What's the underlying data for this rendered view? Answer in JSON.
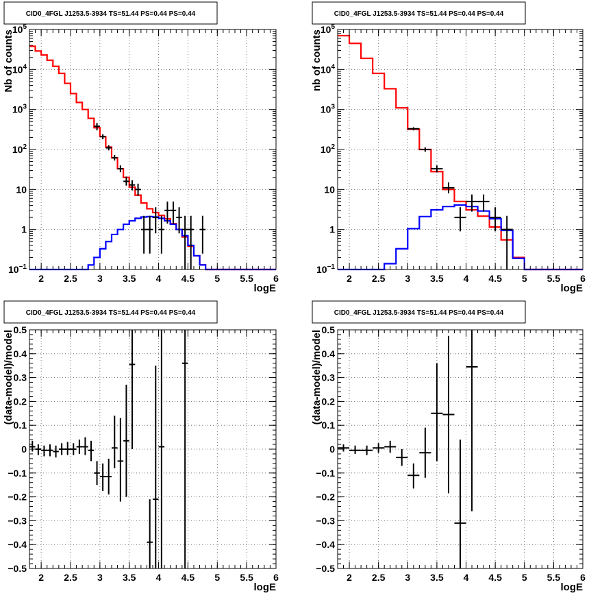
{
  "chart_data": [
    {
      "type": "line",
      "panel": "top-left",
      "title": "CID0_4FGL J1253.5-3934 TS=51.44 PS=0.44 PS=0.44",
      "xlabel": "logE",
      "ylabel": "Nb of counts",
      "xlim": [
        1.8,
        6.0
      ],
      "ylim": [
        0.1,
        100000
      ],
      "yscale": "log",
      "xticks": [
        2,
        2.5,
        3,
        3.5,
        4,
        4.5,
        5,
        5.5,
        6
      ],
      "xtick_labels": [
        "2",
        "2.5",
        "3",
        "3.5",
        "4",
        "4.5",
        "5",
        "5.5",
        "6"
      ],
      "yticks": [
        0.1,
        1,
        10,
        100,
        1000,
        10000,
        100000
      ],
      "ytick_labels": [
        "10^-1",
        "1",
        "10",
        "10^2",
        "10^3",
        "10^4",
        "10^5"
      ],
      "grid": true,
      "bin_edges": [
        1.8,
        1.9,
        2.0,
        2.1,
        2.2,
        2.3,
        2.4,
        2.5,
        2.6,
        2.7,
        2.8,
        2.9,
        3.0,
        3.1,
        3.2,
        3.3,
        3.4,
        3.5,
        3.6,
        3.7,
        3.8,
        3.9,
        4.0,
        4.1,
        4.2,
        4.3,
        4.4,
        4.5,
        4.6,
        4.7,
        4.8,
        4.9,
        5.0,
        5.1,
        5.2,
        5.3,
        5.4,
        5.5,
        5.6,
        5.7,
        5.8,
        5.9,
        6.0
      ],
      "series": [
        {
          "name": "",
          "color": "#ff0000",
          "style": "hist",
          "values": [
            38000,
            29000,
            23000,
            17000,
            12000,
            8000,
            4500,
            2500,
            1500,
            1000,
            600,
            350,
            210,
            115,
            62,
            33,
            20,
            11.5,
            7.2,
            4.6,
            3.3,
            2.65,
            2.25,
            1.85,
            1.4,
            1.0,
            0.65,
            0.38,
            0.22,
            0.13,
            0.1,
            0.1,
            0.1,
            0.1,
            0.1,
            0.1,
            0.1,
            0.1,
            0.1,
            0.1,
            0.1,
            0.1
          ]
        },
        {
          "name": "",
          "color": "#0000ff",
          "style": "hist",
          "values": [
            0.1,
            0.1,
            0.1,
            0.1,
            0.1,
            0.1,
            0.1,
            0.1,
            0.1,
            0.1,
            0.13,
            0.2,
            0.33,
            0.5,
            0.75,
            1.0,
            1.35,
            1.65,
            1.9,
            2.05,
            2.1,
            2.05,
            1.9,
            1.65,
            1.35,
            1.0,
            0.7,
            0.4,
            0.22,
            0.13,
            0.1,
            0.1,
            0.1,
            0.1,
            0.1,
            0.1,
            0.1,
            0.1,
            0.1,
            0.1,
            0.1,
            0.1
          ]
        }
      ],
      "points": [
        {
          "x": 2.95,
          "y": 380,
          "lo": 300,
          "hi": 460
        },
        {
          "x": 3.05,
          "y": 210,
          "lo": 180,
          "hi": 240
        },
        {
          "x": 3.15,
          "y": 110,
          "lo": 95,
          "hi": 128
        },
        {
          "x": 3.25,
          "y": 62,
          "lo": 53,
          "hi": 73
        },
        {
          "x": 3.35,
          "y": 33,
          "lo": 27,
          "hi": 40
        },
        {
          "x": 3.45,
          "y": 16,
          "lo": 12.5,
          "hi": 21
        },
        {
          "x": 3.55,
          "y": 13,
          "lo": 9.5,
          "hi": 17
        },
        {
          "x": 3.65,
          "y": 10,
          "lo": 7,
          "hi": 14
        },
        {
          "x": 3.75,
          "y": 1,
          "lo": 0.25,
          "hi": 2.2
        },
        {
          "x": 3.85,
          "y": 1,
          "lo": 0.25,
          "hi": 2.2
        },
        {
          "x": 3.95,
          "y": 2,
          "lo": 0.8,
          "hi": 3.6
        },
        {
          "x": 4.05,
          "y": 1,
          "lo": 0.25,
          "hi": 2.2
        },
        {
          "x": 4.15,
          "y": 3,
          "lo": 1.4,
          "hi": 5
        },
        {
          "x": 4.25,
          "y": 3,
          "lo": 1.4,
          "hi": 5
        },
        {
          "x": 4.35,
          "y": 2,
          "lo": 0.8,
          "hi": 3.6
        },
        {
          "x": 4.45,
          "y": 1,
          "lo": 0.1,
          "hi": 2.2
        },
        {
          "x": 4.55,
          "y": 1,
          "lo": 0.1,
          "hi": 2.2
        },
        {
          "x": 4.75,
          "y": 1,
          "lo": 0.25,
          "hi": 2.2
        }
      ]
    },
    {
      "type": "line",
      "panel": "top-right",
      "title": "CID0_4FGL J1253.5-3934 TS=51.44 PS=0.44 PS=0.44",
      "xlabel": "logE",
      "ylabel": "nb of counts",
      "xlim": [
        1.8,
        6.0
      ],
      "ylim": [
        0.1,
        100000
      ],
      "yscale": "log",
      "xticks": [
        2,
        2.5,
        3,
        3.5,
        4,
        4.5,
        5,
        5.5,
        6
      ],
      "xtick_labels": [
        "2",
        "2.5",
        "3",
        "3.5",
        "4",
        "4.5",
        "5",
        "5.5",
        "6"
      ],
      "yticks": [
        0.1,
        1,
        10,
        100,
        1000,
        10000,
        100000
      ],
      "ytick_labels": [
        "10^-1",
        "1",
        "10",
        "10^2",
        "10^3",
        "10^4",
        "10^5"
      ],
      "grid": true,
      "bin_edges": [
        1.8,
        2.0,
        2.2,
        2.4,
        2.6,
        2.8,
        3.0,
        3.2,
        3.4,
        3.6,
        3.8,
        4.0,
        4.2,
        4.4,
        4.6,
        4.8,
        5.0,
        5.2,
        5.4,
        5.6,
        5.8,
        6.0
      ],
      "series": [
        {
          "name": "",
          "color": "#ff0000",
          "style": "hist",
          "values": [
            70000,
            45000,
            19000,
            8000,
            3300,
            1100,
            320,
            100,
            28,
            10,
            5,
            3.1,
            2.15,
            1.15,
            0.55,
            0.2,
            0.1,
            0.1,
            0.1,
            0.1,
            0.1
          ]
        },
        {
          "name": "",
          "color": "#0000ff",
          "style": "hist",
          "values": [
            0.1,
            0.1,
            0.1,
            0.1,
            0.14,
            0.33,
            1.05,
            2.1,
            3.1,
            3.75,
            4.1,
            3.75,
            2.9,
            1.85,
            0.95,
            0.19,
            0.1,
            0.1,
            0.1,
            0.1,
            0.1
          ]
        }
      ],
      "points": [
        {
          "x": 3.1,
          "y": 330,
          "lo": 300,
          "hi": 360
        },
        {
          "x": 3.3,
          "y": 100,
          "lo": 88,
          "hi": 113
        },
        {
          "x": 3.5,
          "y": 33,
          "lo": 27,
          "hi": 40
        },
        {
          "x": 3.7,
          "y": 11,
          "lo": 8,
          "hi": 15
        },
        {
          "x": 3.9,
          "y": 2,
          "lo": 0.9,
          "hi": 3.6
        },
        {
          "x": 4.1,
          "y": 5,
          "lo": 2.8,
          "hi": 7.5
        },
        {
          "x": 4.3,
          "y": 5,
          "lo": 2.8,
          "hi": 7.5
        },
        {
          "x": 4.5,
          "y": 2,
          "lo": 0.9,
          "hi": 3.6
        },
        {
          "x": 4.7,
          "y": 1,
          "lo": 0.1,
          "hi": 2.2
        }
      ]
    },
    {
      "type": "scatter",
      "panel": "bottom-left",
      "title": "CID0_4FGL J1253.5-3934 TS=51.44 PS=0.44 PS=0.44",
      "xlabel": "logE",
      "ylabel": "(data-model)/model",
      "xlim": [
        1.8,
        6.0
      ],
      "ylim": [
        -0.5,
        0.5
      ],
      "xticks": [
        2,
        2.5,
        3,
        3.5,
        4,
        4.5,
        5,
        5.5,
        6
      ],
      "xtick_labels": [
        "2",
        "2.5",
        "3",
        "3.5",
        "4",
        "4.5",
        "5",
        "5.5",
        "6"
      ],
      "yticks": [
        -0.5,
        -0.4,
        -0.3,
        -0.2,
        -0.1,
        0,
        0.1,
        0.2,
        0.3,
        0.4,
        0.5
      ],
      "ytick_labels": [
        "−0.5",
        "−0.4",
        "−0.3",
        "−0.2",
        "−0.1",
        "0",
        "0.1",
        "0.2",
        "0.3",
        "0.4",
        "0.5"
      ],
      "grid": true,
      "halfwidth": 0.05,
      "points": [
        {
          "x": 1.85,
          "y": 0.01,
          "lo": -0.01,
          "hi": 0.035
        },
        {
          "x": 1.95,
          "y": 0.0,
          "lo": -0.025,
          "hi": 0.02
        },
        {
          "x": 2.05,
          "y": -0.005,
          "lo": -0.03,
          "hi": 0.015
        },
        {
          "x": 2.15,
          "y": -0.005,
          "lo": -0.03,
          "hi": 0.02
        },
        {
          "x": 2.25,
          "y": -0.01,
          "lo": -0.035,
          "hi": 0.015
        },
        {
          "x": 2.35,
          "y": 0.0,
          "lo": -0.025,
          "hi": 0.025
        },
        {
          "x": 2.45,
          "y": 0.0,
          "lo": -0.025,
          "hi": 0.03
        },
        {
          "x": 2.55,
          "y": 0.0,
          "lo": -0.025,
          "hi": 0.025
        },
        {
          "x": 2.65,
          "y": 0.01,
          "lo": -0.02,
          "hi": 0.04
        },
        {
          "x": 2.75,
          "y": 0.01,
          "lo": -0.025,
          "hi": 0.05
        },
        {
          "x": 2.85,
          "y": -0.005,
          "lo": -0.05,
          "hi": 0.035
        },
        {
          "x": 2.95,
          "y": -0.1,
          "lo": -0.15,
          "hi": -0.05
        },
        {
          "x": 3.05,
          "y": -0.115,
          "lo": -0.175,
          "hi": -0.06
        },
        {
          "x": 3.15,
          "y": -0.115,
          "lo": -0.19,
          "hi": -0.04
        },
        {
          "x": 3.25,
          "y": 0.005,
          "lo": -0.08,
          "hi": 0.14
        },
        {
          "x": 3.35,
          "y": -0.05,
          "lo": -0.22,
          "hi": 0.13
        },
        {
          "x": 3.45,
          "y": 0.035,
          "lo": -0.2,
          "hi": 0.27
        },
        {
          "x": 3.55,
          "y": 0.355,
          "lo": 0.0,
          "hi": 0.5
        },
        {
          "x": 3.85,
          "y": -0.39,
          "lo": -0.5,
          "hi": -0.21
        },
        {
          "x": 3.95,
          "y": -0.21,
          "lo": -0.5,
          "hi": 0.35
        },
        {
          "x": 4.05,
          "y": 0.01,
          "lo": -0.5,
          "hi": 0.5
        },
        {
          "x": 4.45,
          "y": 0.36,
          "lo": -0.5,
          "hi": 0.5
        }
      ]
    },
    {
      "type": "scatter",
      "panel": "bottom-right",
      "title": "CID0_4FGL J1253.5-3934 TS=51.44 PS=0.44 PS=0.44",
      "xlabel": "logE",
      "ylabel": "(data-model)/model",
      "xlim": [
        1.8,
        6.0
      ],
      "ylim": [
        -0.5,
        0.5
      ],
      "xticks": [
        2,
        2.5,
        3,
        3.5,
        4,
        4.5,
        5,
        5.5,
        6
      ],
      "xtick_labels": [
        "2",
        "2.5",
        "3",
        "3.5",
        "4",
        "4.5",
        "5",
        "5.5",
        "6"
      ],
      "yticks": [
        -0.5,
        -0.4,
        -0.3,
        -0.2,
        -0.1,
        0,
        0.1,
        0.2,
        0.3,
        0.4,
        0.5
      ],
      "ytick_labels": [
        "−0.5",
        "−0.4",
        "−0.3",
        "−0.2",
        "−0.1",
        "0",
        "0.1",
        "0.2",
        "0.3",
        "0.4",
        "0.5"
      ],
      "grid": true,
      "halfwidth": 0.1,
      "points": [
        {
          "x": 1.9,
          "y": 0.005,
          "lo": -0.01,
          "hi": 0.02
        },
        {
          "x": 2.1,
          "y": -0.005,
          "lo": -0.02,
          "hi": 0.015
        },
        {
          "x": 2.3,
          "y": -0.005,
          "lo": -0.025,
          "hi": 0.015
        },
        {
          "x": 2.5,
          "y": 0.005,
          "lo": -0.015,
          "hi": 0.025
        },
        {
          "x": 2.7,
          "y": 0.01,
          "lo": -0.015,
          "hi": 0.035
        },
        {
          "x": 2.9,
          "y": -0.035,
          "lo": -0.07,
          "hi": 0.0
        },
        {
          "x": 3.1,
          "y": -0.11,
          "lo": -0.165,
          "hi": -0.06
        },
        {
          "x": 3.3,
          "y": -0.015,
          "lo": -0.12,
          "hi": 0.09
        },
        {
          "x": 3.5,
          "y": 0.15,
          "lo": -0.05,
          "hi": 0.36
        },
        {
          "x": 3.7,
          "y": 0.145,
          "lo": -0.185,
          "hi": 0.475
        },
        {
          "x": 3.9,
          "y": -0.31,
          "lo": -0.5,
          "hi": 0.04
        },
        {
          "x": 4.1,
          "y": 0.345,
          "lo": -0.26,
          "hi": 0.5
        }
      ]
    }
  ]
}
